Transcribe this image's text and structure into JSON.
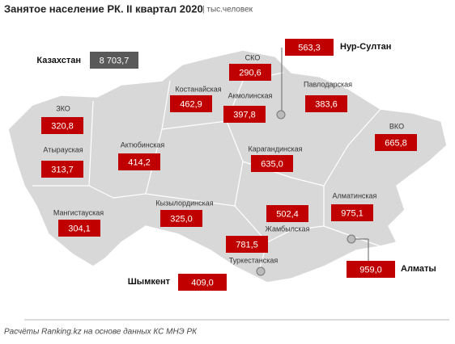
{
  "title": "Занятое население РК. II квартал 2020",
  "unit": "| тыс.человек",
  "regions": [
    {
      "name": "Казахстан",
      "value": "8 703,7"
    },
    {
      "name": "СКО",
      "value": "290,6"
    },
    {
      "name": "Нур-Султан",
      "value": "563,3"
    },
    {
      "name": "Костанайская",
      "value": "462,9"
    },
    {
      "name": "Акмолинская",
      "value": "397,8"
    },
    {
      "name": "Павлодарская",
      "value": "383,6"
    },
    {
      "name": "ЗКО",
      "value": "320,8"
    },
    {
      "name": "ВКО",
      "value": "665,8"
    },
    {
      "name": "Атырауская",
      "value": "313,7"
    },
    {
      "name": "Актюбинская",
      "value": "414,2"
    },
    {
      "name": "Карагандинская",
      "value": "635,0"
    },
    {
      "name": "Мангистауская",
      "value": "304,1"
    },
    {
      "name": "Кызылординская",
      "value": "325,0"
    },
    {
      "name": "Алматинская",
      "value": "975,1"
    },
    {
      "name": "Жамбылская",
      "value": "502,4"
    },
    {
      "name": "Туркестанская",
      "value": "781,5"
    },
    {
      "name": "Шымкент",
      "value": "409,0"
    },
    {
      "name": "Алматы",
      "value": "959,0"
    }
  ],
  "footer": "Расчёты Ranking.kz на основе данных КС МНЭ РК"
}
